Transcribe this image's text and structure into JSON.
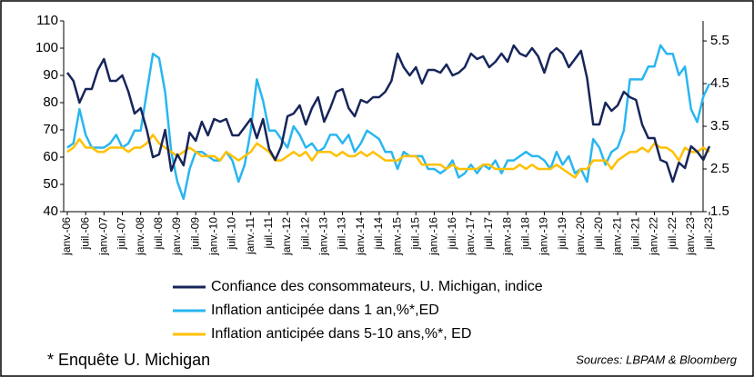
{
  "chart_data": {
    "type": "line",
    "categories": [
      "janv.-06",
      null,
      null,
      "juil.-06",
      null,
      null,
      "janv.-07",
      null,
      null,
      "juil.-07",
      null,
      null,
      "janv.-08",
      null,
      null,
      "juil.-08",
      null,
      null,
      "janv.-09",
      null,
      null,
      "juil.-09",
      null,
      null,
      "janv.-10",
      null,
      null,
      "juil.-10",
      null,
      null,
      "janv.-11",
      null,
      null,
      "juil.-11",
      null,
      null,
      "janv.-12",
      null,
      null,
      "juil.-12",
      null,
      null,
      "janv.-13",
      null,
      null,
      "juil.-13",
      null,
      null,
      "janv.-14",
      null,
      null,
      "juil.-14",
      null,
      null,
      "janv.-15",
      null,
      null,
      "juil.-15",
      null,
      null,
      "janv.-16",
      null,
      null,
      "juil.-16",
      null,
      null,
      "janv.-17",
      null,
      null,
      "juil.-17",
      null,
      null,
      "janv.-18",
      null,
      null,
      "juil.-18",
      null,
      null,
      "janv.-19",
      null,
      null,
      "juil.-19",
      null,
      null,
      "janv.-20",
      null,
      null,
      "juil.-20",
      null,
      null,
      "janv.-21",
      null,
      null,
      "juil.-21",
      null,
      null,
      "janv.-22",
      null,
      null,
      "juil.-22",
      null,
      null,
      "janv.-23",
      null,
      null,
      "juil.-23"
    ],
    "series": [
      {
        "name": "Confiance des consommateurs, U. Michigan, indice",
        "color": "#17255a",
        "axis": "y",
        "values": [
          91,
          88,
          80,
          85,
          85,
          92,
          96,
          88,
          88,
          90,
          84,
          76,
          78,
          70,
          60,
          61,
          70,
          55,
          61,
          57,
          69,
          66,
          73,
          68,
          74,
          73,
          74,
          68,
          68,
          71,
          74,
          67,
          74,
          63,
          59,
          64,
          75,
          76,
          79,
          72,
          78,
          82,
          73,
          78,
          84,
          85,
          78,
          75,
          81,
          80,
          82,
          82,
          84,
          88,
          98,
          93,
          90,
          93,
          87,
          92,
          92,
          91,
          94,
          90,
          91,
          93,
          98,
          96,
          97,
          93,
          95,
          98,
          95,
          101,
          98,
          97,
          100,
          97,
          91,
          98,
          100,
          98,
          93,
          96,
          99,
          89,
          72,
          72,
          80,
          77,
          79,
          84,
          82,
          81,
          72,
          67,
          67,
          59,
          58,
          51,
          58,
          56,
          64,
          62,
          59,
          64
        ]
      },
      {
        "name": "Inflation anticipée dans 1 an,%*,ED",
        "color": "#29b6f0",
        "axis": "y2",
        "values": [
          3.0,
          3.1,
          3.9,
          3.3,
          3.0,
          3.0,
          3.0,
          3.1,
          3.3,
          3.0,
          3.1,
          3.4,
          3.4,
          4.3,
          5.2,
          5.1,
          4.3,
          2.9,
          2.2,
          1.8,
          2.5,
          2.9,
          2.9,
          2.8,
          2.7,
          2.7,
          2.9,
          2.7,
          2.2,
          2.6,
          3.4,
          4.6,
          4.1,
          3.4,
          3.4,
          3.2,
          3.0,
          3.5,
          3.3,
          3.0,
          3.1,
          2.9,
          3.0,
          3.3,
          3.3,
          3.1,
          3.3,
          2.9,
          3.1,
          3.4,
          3.3,
          3.2,
          2.9,
          2.9,
          2.5,
          2.9,
          2.8,
          2.8,
          2.8,
          2.5,
          2.5,
          2.4,
          2.5,
          2.7,
          2.3,
          2.4,
          2.6,
          2.4,
          2.6,
          2.5,
          2.7,
          2.4,
          2.7,
          2.7,
          2.8,
          2.9,
          2.8,
          2.8,
          2.7,
          2.5,
          2.9,
          2.6,
          2.8,
          2.4,
          2.5,
          2.2,
          3.2,
          3.0,
          2.6,
          2.9,
          3.0,
          3.4,
          4.6,
          4.6,
          4.6,
          4.9,
          4.9,
          5.4,
          5.2,
          5.2,
          4.7,
          4.9,
          3.9,
          3.6,
          4.2,
          4.5
        ]
      },
      {
        "name": "Inflation anticipée dans 5-10 ans,%*, ED",
        "color": "#ffc000",
        "axis": "y2",
        "values": [
          2.9,
          3.0,
          3.2,
          3.0,
          3.0,
          2.9,
          2.9,
          3.0,
          3.0,
          3.0,
          2.9,
          3.0,
          3.0,
          3.1,
          3.3,
          3.1,
          3.0,
          2.9,
          2.8,
          2.9,
          3.0,
          2.9,
          2.8,
          2.8,
          2.8,
          2.7,
          2.9,
          2.8,
          2.7,
          2.8,
          2.9,
          3.1,
          3.0,
          2.9,
          2.7,
          2.7,
          2.8,
          2.9,
          2.8,
          2.9,
          2.7,
          2.9,
          2.9,
          2.9,
          2.8,
          2.9,
          2.8,
          2.8,
          2.9,
          2.8,
          2.9,
          2.8,
          2.7,
          2.7,
          2.7,
          2.8,
          2.8,
          2.8,
          2.6,
          2.6,
          2.6,
          2.6,
          2.5,
          2.6,
          2.5,
          2.5,
          2.5,
          2.5,
          2.6,
          2.6,
          2.5,
          2.5,
          2.5,
          2.5,
          2.6,
          2.5,
          2.6,
          2.5,
          2.5,
          2.5,
          2.6,
          2.5,
          2.4,
          2.3,
          2.5,
          2.5,
          2.7,
          2.7,
          2.7,
          2.5,
          2.7,
          2.8,
          2.9,
          2.9,
          3.0,
          2.9,
          3.1,
          3.0,
          3.0,
          2.9,
          2.7,
          3.0,
          2.9,
          2.9,
          3.0,
          2.9
        ]
      }
    ],
    "ylim": [
      40,
      110
    ],
    "yticks": [
      40,
      50,
      60,
      70,
      80,
      90,
      100,
      110
    ],
    "y2lim": [
      1.5,
      5.97
    ],
    "y2ticks": [
      1.5,
      2.5,
      3.5,
      4.5,
      5.5
    ],
    "note": "* Enquête U. Michigan",
    "source": "Sources: LBPAM & Bloomberg"
  }
}
